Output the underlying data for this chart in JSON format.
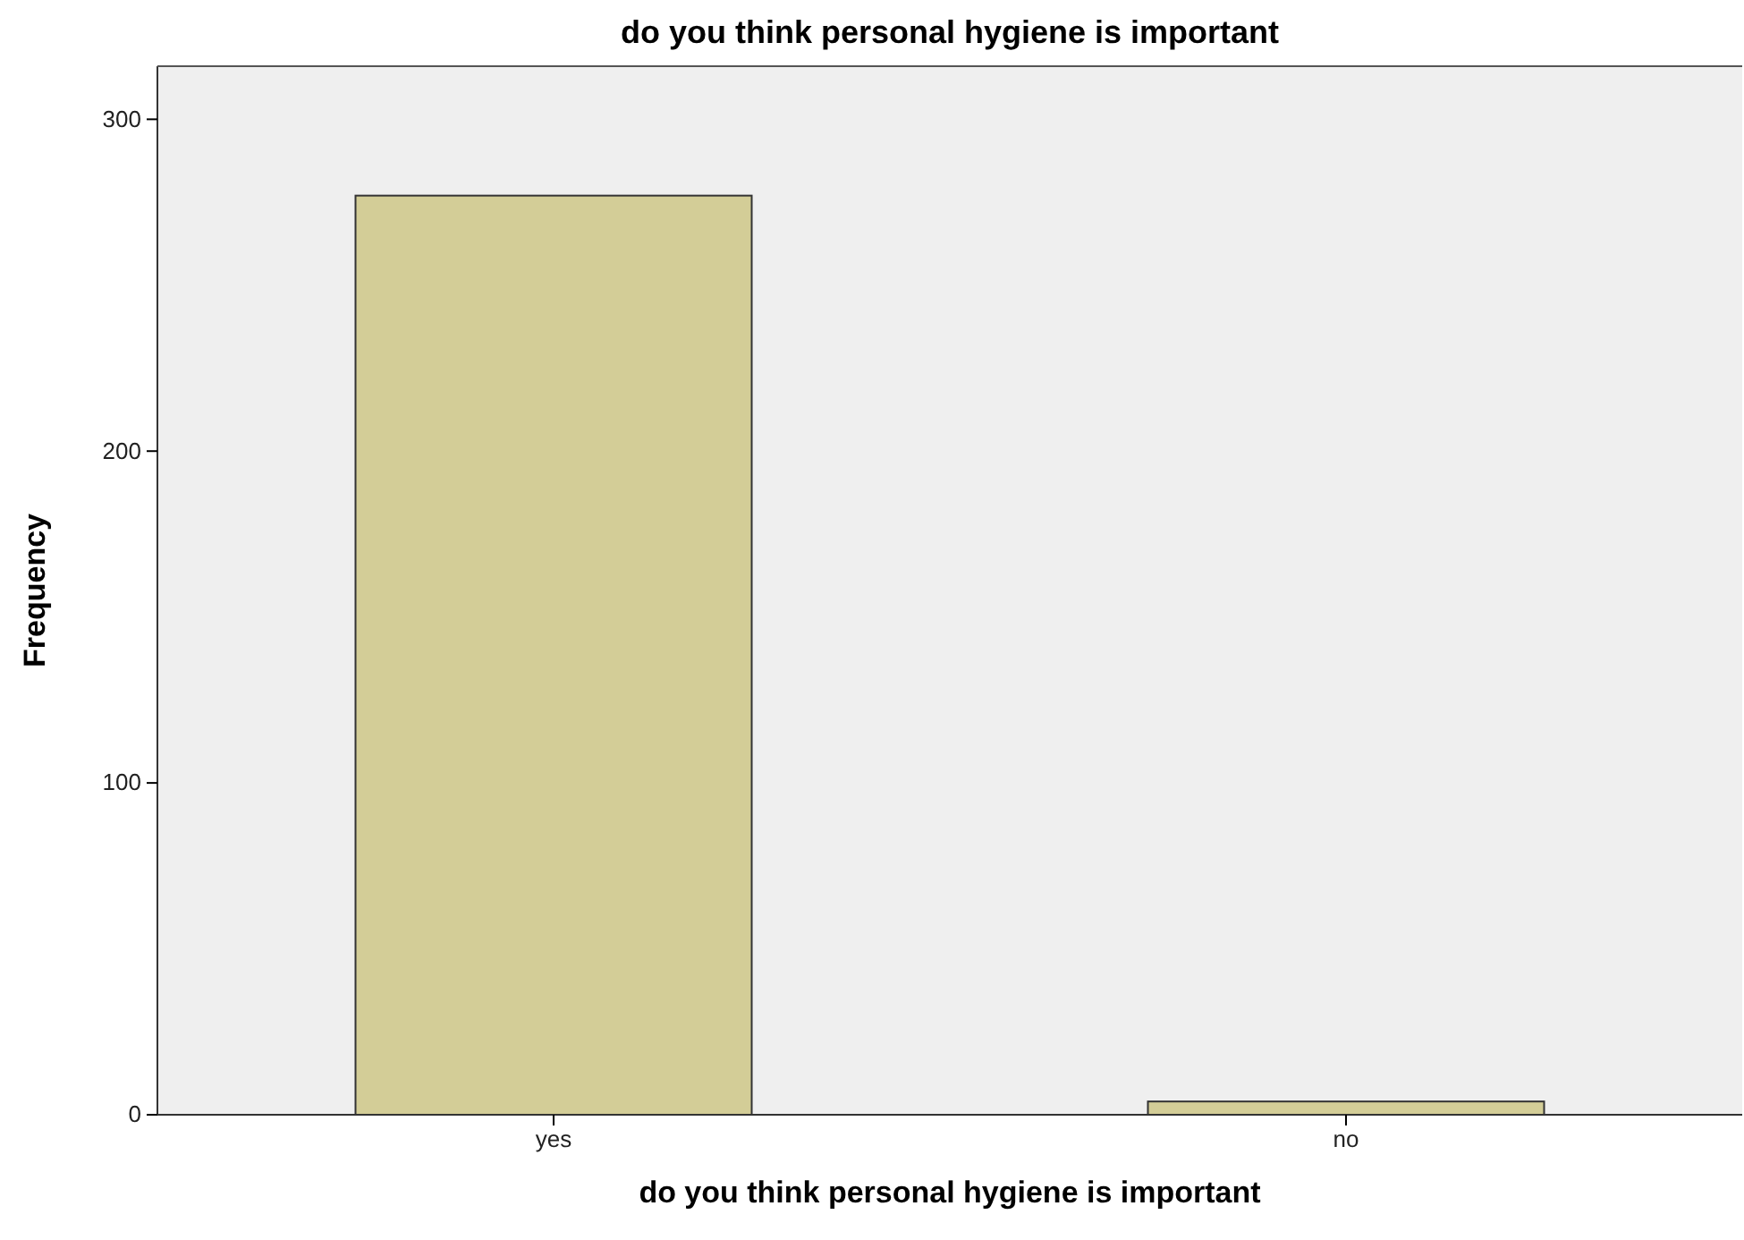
{
  "chart_data": {
    "type": "bar",
    "title": "do you think personal hygiene is important",
    "xlabel": "do you think personal hygiene is important",
    "ylabel": "Frequency",
    "categories": [
      "yes",
      "no"
    ],
    "values": [
      277,
      4
    ],
    "color": "#d3cd97",
    "ylim": [
      0,
      316
    ],
    "yticks": [
      0,
      100,
      200,
      300
    ],
    "grid": false
  }
}
